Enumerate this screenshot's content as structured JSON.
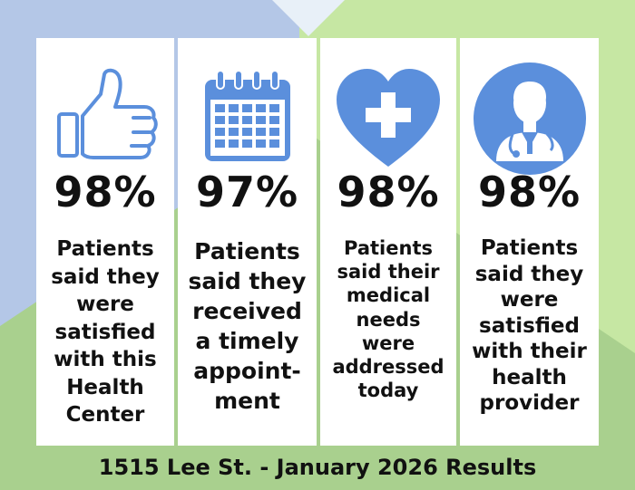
{
  "colors": {
    "accent_blue": "#5b8fdc",
    "background_green": "#a9d08e",
    "background_light_green": "#c6e7a3",
    "background_blue": "#b4c7e7",
    "card_background": "#ffffff",
    "text": "#111111"
  },
  "cards": [
    {
      "icon": "thumbs-up-icon",
      "percent": "98%",
      "description": "Patients\nsaid they\nwere\nsatisfied\nwith this\nHealth\nCenter"
    },
    {
      "icon": "calendar-icon",
      "percent": "97%",
      "description": "Patients\nsaid they\nreceived\na timely\nappoint-\nment"
    },
    {
      "icon": "heart-cross-icon",
      "percent": "98%",
      "description": "Patients\nsaid their\nmedical\nneeds\nwere\naddressed\ntoday"
    },
    {
      "icon": "doctor-icon",
      "percent": "98%",
      "description": "Patients\nsaid they\nwere\nsatisfied\nwith their\nhealth\nprovider"
    }
  ],
  "footer": {
    "text": "1515 Lee St. - January 2026 Results"
  }
}
